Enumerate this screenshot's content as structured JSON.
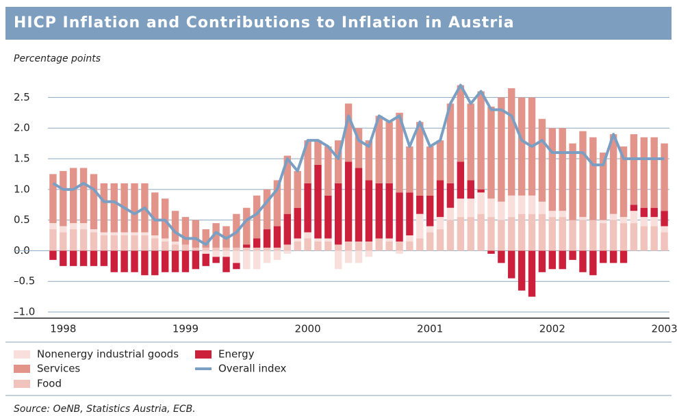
{
  "chart_data": {
    "type": "bar",
    "stacked": true,
    "title": "HICP Inflation and Contributions to Inflation in Austria",
    "subtitle": "Percentage points",
    "source": "Source: OeNB, Statistics Austria, ECB.",
    "categories": [
      null,
      "1998",
      null,
      null,
      null,
      null,
      null,
      null,
      null,
      null,
      null,
      null,
      null,
      "1999",
      null,
      null,
      null,
      null,
      null,
      null,
      null,
      null,
      null,
      null,
      null,
      "2000",
      null,
      null,
      null,
      null,
      null,
      null,
      null,
      null,
      null,
      null,
      null,
      "2001",
      null,
      null,
      null,
      null,
      null,
      null,
      null,
      null,
      null,
      null,
      null,
      "2002",
      null,
      null,
      null,
      null,
      null,
      null,
      null,
      null,
      null,
      null,
      "2003"
    ],
    "ylim": [
      -1.1,
      2.75
    ],
    "yticks": [
      {
        "value": -1,
        "label": "–1.0"
      },
      {
        "value": -0.5,
        "label": "–0.5"
      },
      {
        "value": 0,
        "label": "0.0"
      },
      0.5,
      {
        "value": 1,
        "label": "1.0"
      },
      1.5,
      {
        "value": 2,
        "label": "2.0"
      },
      2.5
    ],
    "grid": true,
    "series": [
      {
        "name": "Nonenergy industrial goods",
        "color": "#f9dfdb",
        "values": [
          0.1,
          0.1,
          0.1,
          0.1,
          0.05,
          0.05,
          0.05,
          0.05,
          0.05,
          0.05,
          0.05,
          0.05,
          0.05,
          0,
          0,
          -0.05,
          -0.1,
          -0.1,
          -0.2,
          -0.3,
          -0.3,
          -0.2,
          -0.15,
          -0.05,
          0.05,
          0.1,
          0.05,
          0.05,
          -0.3,
          -0.2,
          -0.2,
          -0.1,
          0,
          0.05,
          -0.05,
          0.1,
          0.4,
          0.1,
          0.2,
          0.2,
          0.3,
          0.3,
          0.35,
          0.3,
          0.3,
          0.35,
          0.3,
          0.3,
          0.2,
          0.1,
          0.1,
          0,
          0.05,
          0,
          0.05,
          0.1,
          0.1,
          0.2,
          0.15,
          0.15,
          0.1
        ]
      },
      {
        "name": "Services",
        "color": "#e2948a",
        "values": [
          0.8,
          0.9,
          0.9,
          0.9,
          0.9,
          0.8,
          0.8,
          0.8,
          0.8,
          0.8,
          0.7,
          0.65,
          0.5,
          0.45,
          0.45,
          0.3,
          0.4,
          0.35,
          0.55,
          0.6,
          0.7,
          0.65,
          0.75,
          0.95,
          0.6,
          0.7,
          0.4,
          0.8,
          0.7,
          0.95,
          0.65,
          0.65,
          1.1,
          1.0,
          1.3,
          0.75,
          1.2,
          0.8,
          0.65,
          1.3,
          1.25,
          1.25,
          1.6,
          1.5,
          1.7,
          1.75,
          1.6,
          1.6,
          1.35,
          1.35,
          1.35,
          1.25,
          1.4,
          1.35,
          1.1,
          1.3,
          1.15,
          1.15,
          1.15,
          1.15,
          1.1
        ]
      },
      {
        "name": "Food",
        "color": "#f0c4bc",
        "values": [
          0.35,
          0.3,
          0.35,
          0.35,
          0.3,
          0.25,
          0.25,
          0.25,
          0.25,
          0.25,
          0.2,
          0.15,
          0.1,
          0.1,
          0.05,
          0.05,
          0.05,
          0.05,
          0.05,
          0.05,
          0.05,
          0.05,
          0.05,
          0.1,
          0.15,
          0.2,
          0.15,
          0.15,
          0.1,
          0.15,
          0.15,
          0.15,
          0.2,
          0.15,
          0.15,
          0.15,
          0.2,
          0.3,
          0.35,
          0.5,
          0.55,
          0.55,
          0.6,
          0.55,
          0.5,
          0.55,
          0.6,
          0.6,
          0.6,
          0.55,
          0.55,
          0.5,
          0.5,
          0.5,
          0.45,
          0.5,
          0.45,
          0.45,
          0.4,
          0.4,
          0.3
        ]
      },
      {
        "name": "Energy",
        "color": "#cc1f3c",
        "values": [
          -0.15,
          -0.25,
          -0.25,
          -0.25,
          -0.25,
          -0.25,
          -0.35,
          -0.35,
          -0.35,
          -0.4,
          -0.4,
          -0.35,
          -0.35,
          -0.35,
          -0.3,
          -0.2,
          -0.1,
          -0.25,
          -0.1,
          0.05,
          0.15,
          0.3,
          0.35,
          0.5,
          0.5,
          0.8,
          1.2,
          0.7,
          1.0,
          1.3,
          1.2,
          1.0,
          0.9,
          0.9,
          0.8,
          0.7,
          0.3,
          0.5,
          0.6,
          0.4,
          0.6,
          0.3,
          0.05,
          -0.05,
          -0.2,
          -0.45,
          -0.65,
          -0.75,
          -0.35,
          -0.3,
          -0.3,
          -0.15,
          -0.35,
          -0.4,
          -0.2,
          -0.2,
          -0.2,
          0.1,
          0.15,
          0.15,
          0.25
        ]
      },
      {
        "name": "Overall index",
        "color": "#7a9fc2",
        "type": "line",
        "values": [
          1.1,
          1.0,
          1.0,
          1.1,
          1.0,
          0.8,
          0.8,
          0.7,
          0.6,
          0.7,
          0.5,
          0.5,
          0.3,
          0.2,
          0.2,
          0.1,
          0.3,
          0.2,
          0.3,
          0.5,
          0.6,
          0.8,
          1.0,
          1.5,
          1.3,
          1.8,
          1.8,
          1.7,
          1.5,
          2.2,
          1.8,
          1.7,
          2.2,
          2.1,
          2.2,
          1.7,
          2.1,
          1.7,
          1.8,
          2.4,
          2.7,
          2.4,
          2.6,
          2.3,
          2.3,
          2.2,
          1.8,
          1.7,
          1.8,
          1.6,
          1.6,
          1.6,
          1.6,
          1.4,
          1.4,
          1.9,
          1.5,
          1.5,
          1.5,
          1.5,
          1.5
        ]
      }
    ]
  }
}
